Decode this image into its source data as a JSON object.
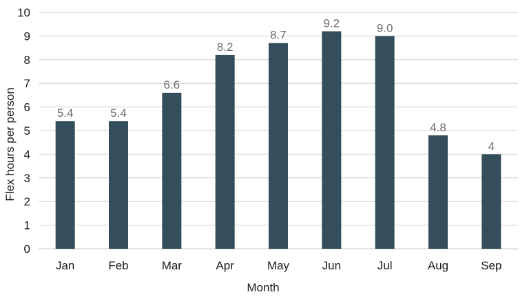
{
  "chart_data": {
    "type": "bar",
    "categories": [
      "Jan",
      "Feb",
      "Mar",
      "Apr",
      "May",
      "Jun",
      "Jul",
      "Aug",
      "Sep"
    ],
    "values": [
      5.4,
      5.4,
      6.6,
      8.2,
      8.7,
      9.2,
      9.0,
      4.8,
      4
    ],
    "data_labels": [
      "5.4",
      "5.4",
      "6.6",
      "8.2",
      "8.7",
      "9.2",
      "9.0",
      "4.8",
      "4"
    ],
    "xlabel": "Month",
    "ylabel": "Flex hours per person",
    "ylim": [
      0,
      10
    ],
    "yticks": [
      0,
      1,
      2,
      3,
      4,
      5,
      6,
      7,
      8,
      9,
      10
    ],
    "grid": true,
    "legend": false,
    "colors": {
      "bar": "#344e5c",
      "grid": "#d0d0d0",
      "label": "#6e6e6e"
    }
  }
}
